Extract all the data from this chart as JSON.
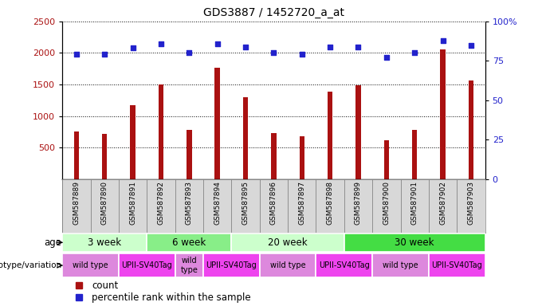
{
  "title": "GDS3887 / 1452720_a_at",
  "samples": [
    "GSM587889",
    "GSM587890",
    "GSM587891",
    "GSM587892",
    "GSM587893",
    "GSM587894",
    "GSM587895",
    "GSM587896",
    "GSM587897",
    "GSM587898",
    "GSM587899",
    "GSM587900",
    "GSM587901",
    "GSM587902",
    "GSM587903"
  ],
  "counts": [
    760,
    720,
    1170,
    1500,
    780,
    1760,
    1300,
    730,
    680,
    1390,
    1490,
    620,
    780,
    2050,
    1560
  ],
  "percentiles": [
    79,
    79,
    83,
    86,
    80,
    86,
    84,
    80,
    79,
    84,
    84,
    77,
    80,
    88,
    85
  ],
  "bar_color": "#aa1111",
  "dot_color": "#2222cc",
  "ylim_left": [
    0,
    2500
  ],
  "ylim_right": [
    0,
    100
  ],
  "yticks_left": [
    500,
    1000,
    1500,
    2000,
    2500
  ],
  "yticks_right": [
    0,
    25,
    50,
    75,
    100
  ],
  "age_groups": [
    {
      "label": "3 week",
      "start": 0,
      "end": 3,
      "color": "#ccffcc"
    },
    {
      "label": "6 week",
      "start": 3,
      "end": 6,
      "color": "#88ee88"
    },
    {
      "label": "20 week",
      "start": 6,
      "end": 10,
      "color": "#ccffcc"
    },
    {
      "label": "30 week",
      "start": 10,
      "end": 15,
      "color": "#44dd44"
    }
  ],
  "genotype_groups": [
    {
      "label": "wild type",
      "start": 0,
      "end": 2,
      "color": "#dd88dd"
    },
    {
      "label": "UPII-SV40Tag",
      "start": 2,
      "end": 4,
      "color": "#ee44ee"
    },
    {
      "label": "wild\ntype",
      "start": 4,
      "end": 5,
      "color": "#dd88dd"
    },
    {
      "label": "UPII-SV40Tag",
      "start": 5,
      "end": 7,
      "color": "#ee44ee"
    },
    {
      "label": "wild type",
      "start": 7,
      "end": 9,
      "color": "#dd88dd"
    },
    {
      "label": "UPII-SV40Tag",
      "start": 9,
      "end": 11,
      "color": "#ee44ee"
    },
    {
      "label": "wild type",
      "start": 11,
      "end": 13,
      "color": "#dd88dd"
    },
    {
      "label": "UPII-SV40Tag",
      "start": 13,
      "end": 15,
      "color": "#ee44ee"
    }
  ],
  "legend_count_color": "#aa1111",
  "legend_dot_color": "#2222cc",
  "sample_bg_color": "#d8d8d8",
  "bar_width": 0.18
}
